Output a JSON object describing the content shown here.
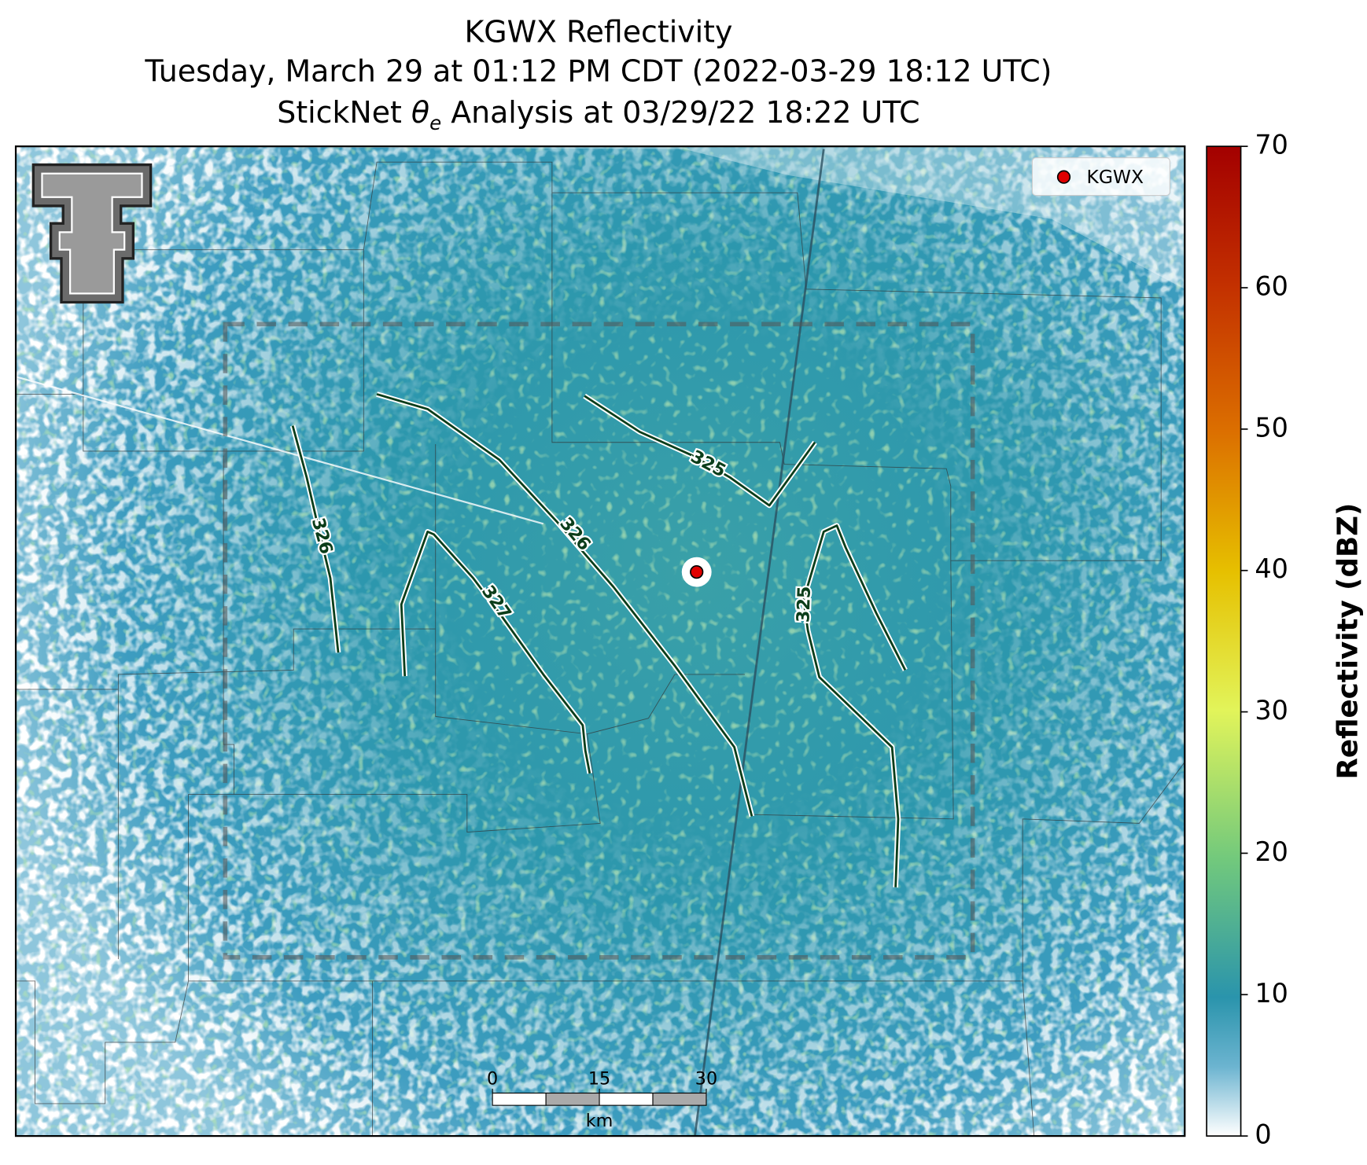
{
  "header": {
    "title": "KGWX Reflectivity",
    "subtitle": "Tuesday, March 29 at 01:12 PM CDT (2022-03-29 18:12 UTC)",
    "analysis": {
      "prefix": "StickNet ",
      "symbol": "θ",
      "subscript": "e",
      "suffix": " Analysis at 03/29/22 18:22 UTC"
    }
  },
  "legend": {
    "label": "KGWX"
  },
  "colorbar": {
    "label": "Reflectivity (dBZ)",
    "lim": [
      0,
      70
    ],
    "ticks": [
      0,
      10,
      20,
      30,
      40,
      50,
      60,
      70
    ]
  },
  "contours": [
    325,
    326,
    326,
    327,
    325
  ],
  "scale_bar": {
    "lim": [
      0,
      30
    ],
    "ticks": [
      0,
      15,
      30
    ],
    "unit": "km"
  }
}
